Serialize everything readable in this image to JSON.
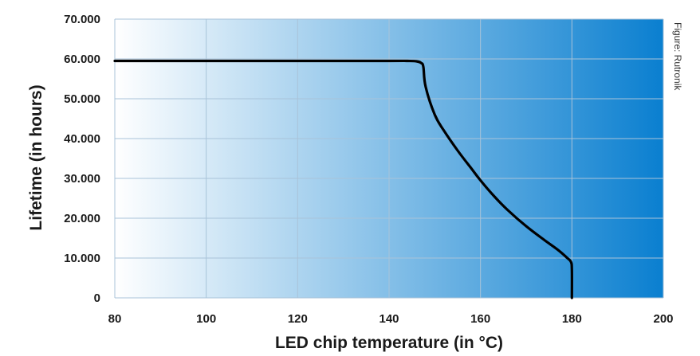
{
  "chart_data": {
    "type": "line",
    "xlabel": "LED chip temperature (in °C)",
    "ylabel": "Lifetime (in hours)",
    "xlim": [
      80,
      200
    ],
    "ylim": [
      0,
      70000
    ],
    "x_ticks": [
      80,
      100,
      120,
      140,
      160,
      180,
      200
    ],
    "y_ticks": [
      0,
      10000,
      20000,
      30000,
      40000,
      50000,
      60000,
      70000
    ],
    "x_tick_labels": [
      "80",
      "100",
      "120",
      "140",
      "160",
      "180",
      "200"
    ],
    "y_tick_labels": [
      "0",
      "10.000",
      "20.000",
      "30.000",
      "40.000",
      "50.000",
      "60.000",
      "70.000"
    ],
    "grid": true,
    "background": "gradient white-to-blue (left to right)",
    "series": [
      {
        "x": [
          80,
          100,
          120,
          140,
          144,
          146,
          147,
          147.5,
          148,
          150,
          152,
          155,
          158,
          160,
          163,
          166,
          170,
          174,
          177,
          179,
          179.8,
          180,
          180
        ],
        "y": [
          59500,
          59500,
          59500,
          59500,
          59500,
          59400,
          59000,
          58000,
          53000,
          46000,
          42000,
          37000,
          32500,
          29500,
          25500,
          22000,
          18000,
          14500,
          12000,
          10000,
          9000,
          7000,
          0
        ]
      }
    ],
    "annotation": "Figure: Rutronik",
    "colors": {
      "gradient_start": "#ffffff",
      "gradient_end": "#0a7fd0",
      "line": "#000000",
      "grid": "#a9c3d9"
    }
  }
}
